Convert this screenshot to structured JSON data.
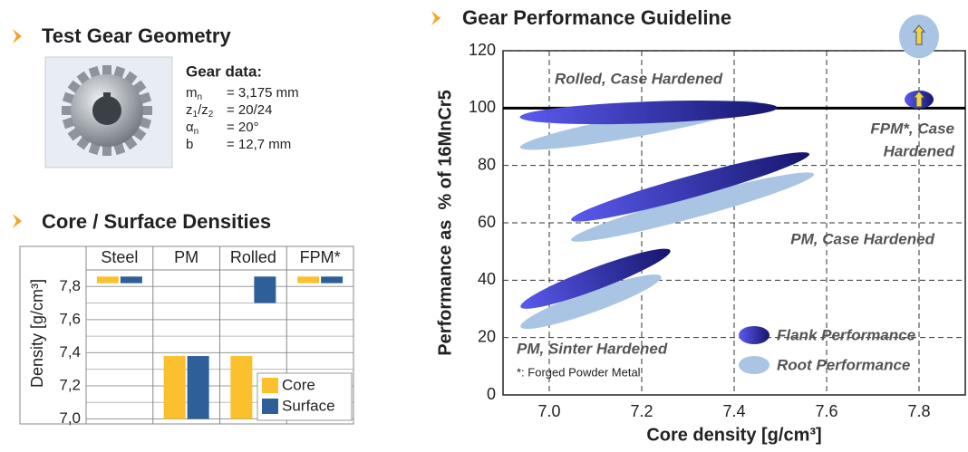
{
  "gear_geometry": {
    "title": "Test Gear Geometry",
    "data_title": "Gear data:",
    "rows": [
      {
        "symbol": [
          {
            "t": "m"
          },
          {
            "t": "n",
            "sub": true
          }
        ],
        "value": "= 3,175 mm"
      },
      {
        "symbol": [
          {
            "t": "z"
          },
          {
            "t": "1",
            "sub": true
          },
          {
            "t": "/z"
          },
          {
            "t": "2",
            "sub": true
          }
        ],
        "value": "= 20/24"
      },
      {
        "symbol": [
          {
            "t": "α"
          },
          {
            "t": "n",
            "sub": true
          }
        ],
        "value": "= 20°"
      },
      {
        "symbol": [
          {
            "t": "b"
          }
        ],
        "value": "= 12,7 mm"
      }
    ]
  },
  "chart_data": [
    {
      "type": "floating_bar",
      "title": "Core / Surface Densities",
      "y_label": "Density [g/cm³]",
      "categories": [
        "Steel",
        "PM",
        "Rolled",
        "FPM*"
      ],
      "series": [
        {
          "name": "Core",
          "color": "#fbc02d",
          "values": [
            [
              7.82,
              7.86
            ],
            [
              7.0,
              7.38
            ],
            [
              7.0,
              7.38
            ],
            [
              7.82,
              7.86
            ]
          ]
        },
        {
          "name": "Surface",
          "color": "#2f5f99",
          "values": [
            [
              7.82,
              7.86
            ],
            [
              7.0,
              7.38
            ],
            [
              7.7,
              7.86
            ],
            [
              7.82,
              7.86
            ]
          ]
        }
      ],
      "ylim": [
        6.97,
        7.9
      ],
      "yticks": [
        {
          "value": 7.0,
          "label": "7,0"
        },
        {
          "value": 7.2,
          "label": "7,2"
        },
        {
          "value": 7.4,
          "label": "7,4"
        },
        {
          "value": 7.6,
          "label": "7,6"
        },
        {
          "value": 7.8,
          "label": "7,8"
        }
      ],
      "grid": true,
      "legend": "lower right"
    },
    {
      "type": "region",
      "title": "Gear Performance Guideline",
      "x_label": "Core density [g/cm³]",
      "y_label": "Performance as  % of 16MnCr5",
      "xlim": [
        6.9,
        7.9
      ],
      "xticks": [
        {
          "value": 7,
          "label": "7.0"
        },
        7.2,
        7.4,
        7.6,
        7.8
      ],
      "ylim": [
        0,
        120
      ],
      "yticks": [
        0,
        20,
        40,
        60,
        80,
        100,
        120
      ],
      "reference_line": 100,
      "grid": true,
      "legend": "lower right",
      "series": [
        {
          "name": "Flank Performance",
          "color": "#3b3bd6",
          "regions": [
            {
              "x": [
                6.96,
                7.47
              ],
              "y": [
                97,
                100
              ]
            },
            {
              "x": 7.8,
              "y": 103
            },
            {
              "x": [
                7.07,
                7.54
              ],
              "y": [
                62,
                83
              ]
            },
            {
              "x": [
                6.96,
                7.24
              ],
              "y": [
                32,
                49
              ]
            }
          ]
        },
        {
          "name": "Root Performance",
          "color": "#a9c5e3",
          "regions": [
            {
              "x": [
                6.96,
                7.43
              ],
              "y": [
                87,
                101
              ]
            },
            {
              "x": 7.8,
              "y": 125
            },
            {
              "x": [
                7.07,
                7.55
              ],
              "y": [
                55,
                76
              ]
            },
            {
              "x": [
                6.96,
                7.22
              ],
              "y": [
                25,
                40
              ]
            }
          ]
        }
      ],
      "annotations": [
        {
          "lines": [
            "Rolled, Case Hardened"
          ]
        },
        {
          "lines": [
            "FPM*, Case",
            "Hardened"
          ]
        },
        {
          "lines": [
            "PM, Case Hardened"
          ]
        },
        {
          "lines": [
            "PM, Sinter Hardened"
          ]
        }
      ],
      "footnote": "*: Forged Powder Metal"
    }
  ]
}
